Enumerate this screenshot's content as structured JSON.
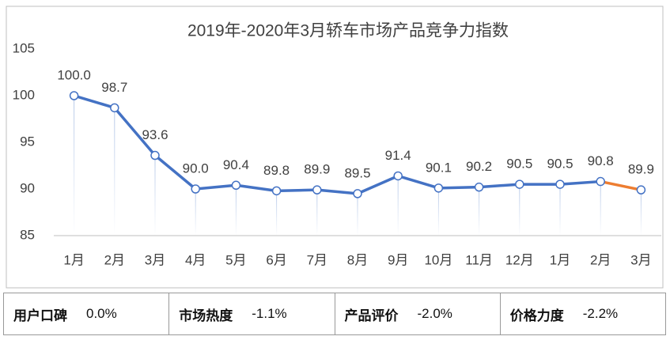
{
  "chart_data": {
    "type": "line",
    "title": "2019年-2020年3月轿车市场产品竞争力指数",
    "categories": [
      "1月",
      "2月",
      "3月",
      "4月",
      "5月",
      "6月",
      "7月",
      "8月",
      "9月",
      "10月",
      "11月",
      "12月",
      "1月",
      "2月",
      "3月"
    ],
    "series": [
      {
        "color": "#4472c4",
        "last_segment_color": "#ed7d31",
        "values": [
          100.0,
          98.7,
          93.6,
          90.0,
          90.4,
          89.8,
          89.9,
          89.5,
          91.4,
          90.1,
          90.2,
          90.5,
          90.5,
          90.8,
          89.9
        ],
        "value_labels": [
          "100.0",
          "98.7",
          "93.6",
          "90.0",
          "90.4",
          "89.8",
          "89.9",
          "89.5",
          "91.4",
          "90.1",
          "90.2",
          "90.5",
          "90.5",
          "90.8",
          "89.9"
        ]
      }
    ],
    "ylim": [
      85,
      105
    ],
    "yticks": [
      85,
      90,
      95,
      100,
      105
    ],
    "grid": false
  },
  "table": {
    "cells": [
      {
        "label": "用户口碑",
        "value": "0.0%"
      },
      {
        "label": "市场热度",
        "value": "-1.1%"
      },
      {
        "label": "产品评价",
        "value": "-2.0%"
      },
      {
        "label": "价格力度",
        "value": "-2.2%"
      }
    ]
  }
}
